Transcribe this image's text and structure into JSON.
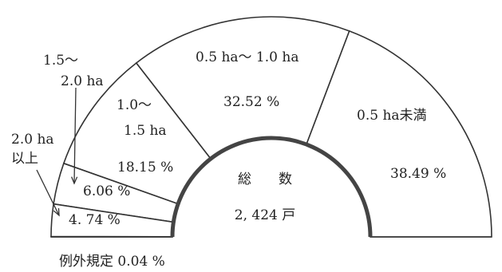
{
  "chart_data": {
    "type": "pie",
    "layout": "half-donut",
    "total_label": "総　　数",
    "total_value": "2, 424 戸",
    "slices": [
      {
        "label": "0.5 ha未満",
        "value": 38.49,
        "value_text": "38.49 %"
      },
      {
        "label": "0.5 ha～ 1.0 ha",
        "value": 32.52,
        "value_text": "32.52 %"
      },
      {
        "label_lines": [
          "1.0～",
          "1.5 ha"
        ],
        "value": 18.15,
        "value_text": "18.15 %"
      },
      {
        "label_lines": [
          "1.5～",
          "2.0 ha"
        ],
        "value": 6.06,
        "value_text": "6.06 %"
      },
      {
        "label_lines": [
          "2.0 ha",
          "以上"
        ],
        "value": 4.74,
        "value_text": "4. 74 %"
      },
      {
        "label": "例外規定",
        "value": 0.04,
        "value_text": "例外規定 0.04 %"
      }
    ]
  }
}
